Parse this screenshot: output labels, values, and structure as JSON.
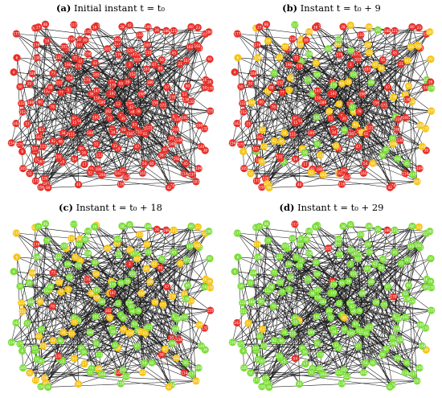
{
  "colors": {
    "red": "#e8302a",
    "yellow": "#f5c518",
    "green": "#7ddd3a",
    "edge": "#1a1a1a",
    "label": "#ffffff"
  },
  "panels": [
    {
      "tag": "(a)",
      "caption": "Initial instant t = t₀",
      "mix": {
        "red": 1.0,
        "yellow": 0.0,
        "green": 0.0
      }
    },
    {
      "tag": "(b)",
      "caption": "Instant t = t₀ + 9",
      "mix": {
        "red": 0.55,
        "yellow": 0.3,
        "green": 0.15
      }
    },
    {
      "tag": "(c)",
      "caption": "Instant t = t₀ + 18",
      "mix": {
        "red": 0.12,
        "yellow": 0.38,
        "green": 0.5
      }
    },
    {
      "tag": "(d)",
      "caption": "Instant t = t₀ + 29",
      "mix": {
        "red": 0.06,
        "yellow": 0.04,
        "green": 0.9
      }
    }
  ]
}
